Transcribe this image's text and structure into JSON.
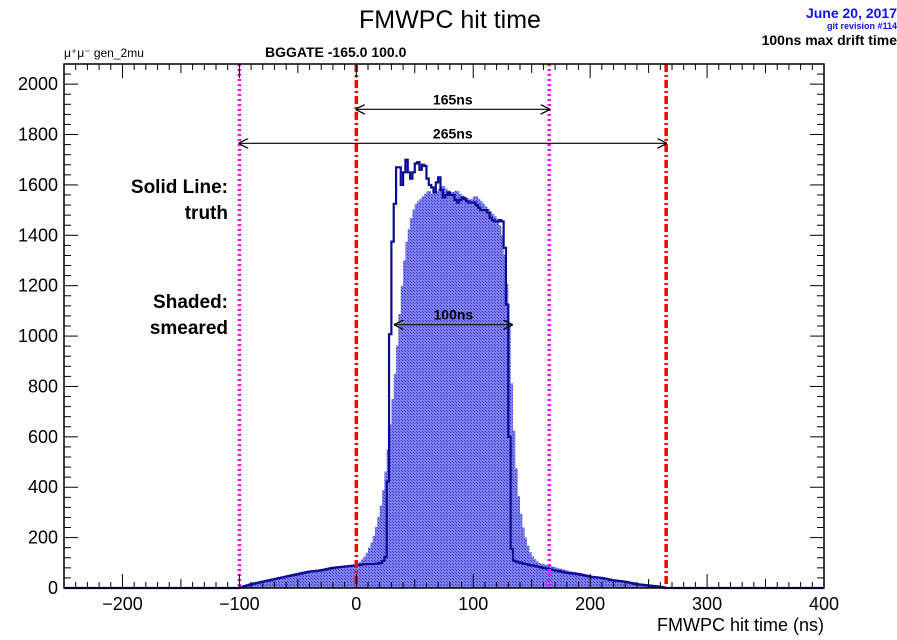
{
  "chart_data": {
    "type": "histogram",
    "title": "FMWPC hit time",
    "xlabel": "FMWPC hit time (ns)",
    "ylabel": "",
    "xlim": [
      -250,
      400
    ],
    "ylim": [
      0,
      2080
    ],
    "x_ticks": [
      -200,
      -100,
      0,
      100,
      200,
      300,
      400
    ],
    "y_ticks": [
      0,
      200,
      400,
      600,
      800,
      1000,
      1200,
      1400,
      1600,
      1800,
      2000
    ],
    "header_left": "μ⁺μ⁻ gen_2mu",
    "header_center": "BGGATE -165.0 100.0",
    "date": "June 20, 2017",
    "revision": "git revision #114",
    "header_right": "100ns max drift time",
    "bin_width": 2,
    "series": [
      {
        "name": "truth",
        "style": "solid-line",
        "color": "#0a0a96",
        "x": [
          -250,
          -100,
          -90,
          -80,
          -70,
          -60,
          -50,
          -40,
          -30,
          -20,
          -10,
          0,
          8,
          16,
          22,
          26,
          30,
          32,
          34,
          36,
          38,
          40,
          42,
          44,
          46,
          48,
          50,
          52,
          54,
          56,
          58,
          60,
          62,
          64,
          66,
          68,
          70,
          72,
          74,
          76,
          78,
          80,
          82,
          84,
          86,
          88,
          90,
          92,
          94,
          96,
          98,
          100,
          102,
          104,
          106,
          108,
          110,
          112,
          114,
          116,
          118,
          120,
          122,
          124,
          126,
          128,
          130,
          132,
          134,
          140,
          150,
          160,
          170,
          180,
          190,
          200,
          210,
          220,
          230,
          240,
          250,
          260,
          265,
          270,
          400
        ],
        "y": [
          0,
          0,
          15,
          25,
          35,
          45,
          55,
          65,
          70,
          80,
          85,
          90,
          95,
          95,
          100,
          130,
          1300,
          1450,
          1600,
          1740,
          1600,
          1600,
          1700,
          1700,
          1600,
          1650,
          1650,
          1720,
          1660,
          1660,
          1700,
          1650,
          1600,
          1600,
          1580,
          1560,
          1660,
          1600,
          1560,
          1540,
          1580,
          1560,
          1560,
          1560,
          1520,
          1540,
          1540,
          1560,
          1530,
          1540,
          1520,
          1540,
          1520,
          1520,
          1500,
          1500,
          1500,
          1500,
          1480,
          1460,
          1460,
          1450,
          1460,
          1460,
          1450,
          1250,
          1000,
          200,
          110,
          100,
          90,
          80,
          70,
          60,
          55,
          45,
          40,
          30,
          25,
          15,
          10,
          5,
          0,
          0,
          0
        ]
      },
      {
        "name": "smeared",
        "style": "shaded",
        "color": "#5a5adc",
        "x": [
          -250,
          -100,
          -90,
          -80,
          -70,
          -60,
          -50,
          -40,
          -30,
          -20,
          -10,
          0,
          8,
          14,
          18,
          22,
          26,
          30,
          34,
          38,
          42,
          46,
          50,
          54,
          58,
          62,
          66,
          70,
          74,
          78,
          82,
          86,
          90,
          94,
          98,
          102,
          106,
          110,
          114,
          118,
          122,
          126,
          130,
          134,
          138,
          142,
          146,
          150,
          156,
          164,
          172,
          180,
          190,
          200,
          210,
          220,
          230,
          240,
          250,
          260,
          270,
          400
        ],
        "y": [
          0,
          0,
          12,
          22,
          32,
          42,
          52,
          60,
          68,
          75,
          82,
          88,
          130,
          190,
          260,
          350,
          500,
          700,
          900,
          1150,
          1350,
          1450,
          1520,
          1540,
          1560,
          1580,
          1560,
          1580,
          1600,
          1580,
          1570,
          1580,
          1560,
          1550,
          1540,
          1560,
          1540,
          1520,
          1500,
          1480,
          1460,
          1380,
          1150,
          700,
          400,
          260,
          180,
          130,
          100,
          90,
          80,
          70,
          60,
          50,
          40,
          35,
          28,
          20,
          12,
          6,
          0,
          0
        ]
      }
    ],
    "vertical_lines": [
      {
        "x": -100,
        "color": "#ff00ff",
        "style": "dotted"
      },
      {
        "x": 0,
        "color": "#ff0000",
        "style": "dash-dot"
      },
      {
        "x": 165,
        "color": "#ff00ff",
        "style": "dotted"
      },
      {
        "x": 265,
        "color": "#ff0000",
        "style": "dash-dot"
      }
    ],
    "arrows": [
      {
        "label": "165ns",
        "x1": 0,
        "x2": 165,
        "y": 1900
      },
      {
        "label": "265ns",
        "x1": -100,
        "x2": 265,
        "y": 1765
      },
      {
        "label": "100ns",
        "x1": 33,
        "x2": 133,
        "y": 1045
      }
    ],
    "annotations": {
      "solid_line_1": "Solid Line:",
      "solid_line_2": "truth",
      "shaded_1": "Shaded:",
      "shaded_2": "smeared"
    }
  }
}
